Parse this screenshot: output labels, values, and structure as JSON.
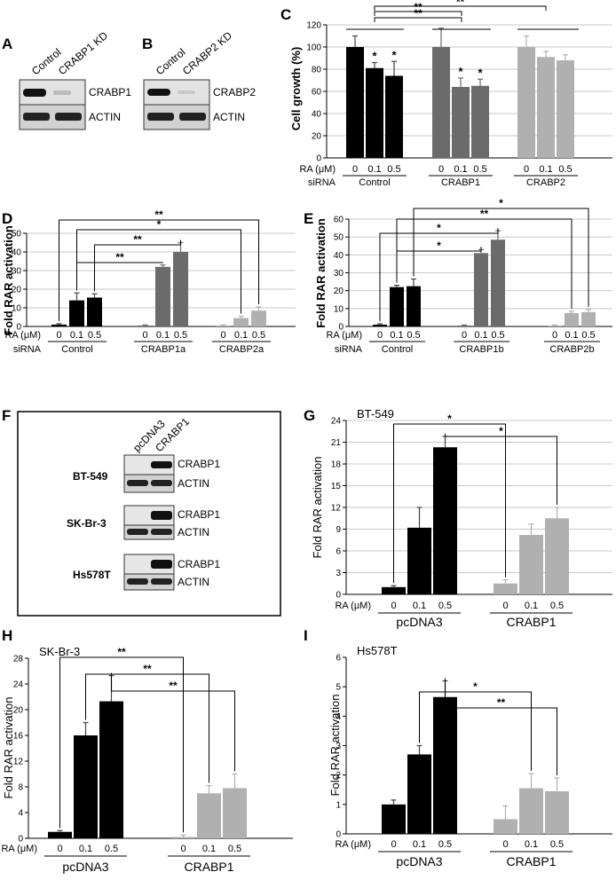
{
  "panel_letters": [
    "A",
    "B",
    "C",
    "D",
    "E",
    "F",
    "G",
    "H",
    "I"
  ],
  "blots": {
    "A": {
      "lanes": [
        "Control",
        "CRABP1 KD"
      ],
      "rows": [
        "CRABP1",
        "ACTIN"
      ]
    },
    "B": {
      "lanes": [
        "Control",
        "CRABP2 KD"
      ],
      "rows": [
        "CRABP2",
        "ACTIN"
      ]
    },
    "F": {
      "lanes": [
        "pcDNA3",
        "CRABP1"
      ],
      "cell_lines": [
        {
          "name": "BT-549",
          "rows": [
            "CRABP1",
            "ACTIN"
          ]
        },
        {
          "name": "SK-Br-3",
          "rows": [
            "CRABP1",
            "ACTIN"
          ]
        },
        {
          "name": "Hs578T",
          "rows": [
            "CRABP1",
            "ACTIN"
          ]
        }
      ]
    }
  },
  "colors": {
    "black": "#000000",
    "dark_gray": "#6b6b6b",
    "light_gray": "#b0b0b0",
    "grid": "#c8c8c8"
  },
  "chart_data": [
    {
      "id": "C",
      "type": "bar",
      "title": "",
      "ylabel": "Cell growth (%)",
      "ylim": [
        0,
        120
      ],
      "yticks": [
        0,
        20,
        40,
        60,
        80,
        100,
        120
      ],
      "row1_label": "RA (μM)",
      "row2_label": "siRNA",
      "doses": [
        "0",
        "0.1",
        "0.5"
      ],
      "groups": [
        {
          "name": "Control",
          "color": "black",
          "values": [
            100,
            81,
            74
          ],
          "errors": [
            10,
            5,
            13
          ],
          "marks": [
            "",
            "*",
            "*"
          ]
        },
        {
          "name": "CRABP1",
          "color": "dark_gray",
          "values": [
            100,
            64,
            65
          ],
          "errors": [
            17,
            8,
            6
          ],
          "marks": [
            "",
            "*",
            "*"
          ]
        },
        {
          "name": "CRABP2",
          "color": "light_gray",
          "values": [
            100,
            91,
            88
          ],
          "errors": [
            10,
            5,
            5
          ],
          "marks": [
            "",
            "",
            ""
          ]
        }
      ],
      "comparisons": [
        {
          "label": "**"
        },
        {
          "label": "**"
        },
        {
          "label": "**"
        }
      ]
    },
    {
      "id": "D",
      "type": "bar",
      "title": "",
      "ylabel": "Fold RAR activation",
      "ylim": [
        0,
        50
      ],
      "yticks": [
        0,
        10,
        20,
        30,
        40,
        50
      ],
      "row1_label": "RA (μM)",
      "row2_label": "siRNA",
      "doses": [
        "0",
        "0.1",
        "0.5"
      ],
      "groups": [
        {
          "name": "Control",
          "color": "black",
          "values": [
            1,
            14,
            15.5
          ],
          "errors": [
            0.5,
            4,
            2
          ],
          "marks": [
            "",
            "",
            ""
          ]
        },
        {
          "name": "CRABP1a",
          "color": "dark_gray",
          "values": [
            0.5,
            32,
            40
          ],
          "errors": [
            0.3,
            1,
            5
          ],
          "marks": [
            "",
            "",
            ""
          ]
        },
        {
          "name": "CRABP2a",
          "color": "light_gray",
          "values": [
            0.5,
            4.5,
            8.5
          ],
          "errors": [
            0.3,
            1,
            2
          ],
          "marks": [
            "",
            "",
            ""
          ]
        }
      ],
      "comparisons": [
        {
          "label": "**"
        },
        {
          "label": "**"
        },
        {
          "label": "*"
        },
        {
          "label": "**"
        }
      ]
    },
    {
      "id": "E",
      "type": "bar",
      "title": "",
      "ylabel": "Fold RAR activation",
      "ylim": [
        0,
        60
      ],
      "yticks": [
        0,
        10,
        20,
        30,
        40,
        50,
        60
      ],
      "row1_label": "RA (μM)",
      "row2_label": "siRNA",
      "doses": [
        "0",
        "0.1",
        "0.5"
      ],
      "groups": [
        {
          "name": "Control",
          "color": "black",
          "values": [
            1,
            22,
            22.5
          ],
          "errors": [
            0.5,
            1,
            4
          ],
          "marks": [
            "",
            "",
            ""
          ]
        },
        {
          "name": "CRABP1b",
          "color": "dark_gray",
          "values": [
            0.5,
            41,
            48.5
          ],
          "errors": [
            0.3,
            2,
            5
          ],
          "marks": [
            "",
            "",
            ""
          ]
        },
        {
          "name": "CRABP2b",
          "color": "light_gray",
          "values": [
            0.5,
            7.5,
            8
          ],
          "errors": [
            0.3,
            1,
            1.5
          ],
          "marks": [
            "",
            "",
            ""
          ]
        }
      ],
      "comparisons": [
        {
          "label": "*"
        },
        {
          "label": "*"
        },
        {
          "label": "**"
        },
        {
          "label": "*"
        }
      ]
    },
    {
      "id": "G",
      "type": "bar",
      "title": "BT-549",
      "ylabel": "Fold RAR activation",
      "ylim": [
        0,
        24
      ],
      "yticks": [
        0,
        3,
        6,
        9,
        12,
        15,
        18,
        21,
        24
      ],
      "row1_label": "RA (μM)",
      "row2_label": "",
      "doses": [
        "0",
        "0.1",
        "0.5"
      ],
      "groups": [
        {
          "name": "pcDNA3",
          "color": "black",
          "values": [
            1,
            9.2,
            20.3
          ],
          "errors": [
            0.2,
            2.8,
            1.5
          ],
          "marks": [
            "",
            "",
            ""
          ]
        },
        {
          "name": "CRABP1",
          "color": "light_gray",
          "values": [
            1.5,
            8.2,
            10.5
          ],
          "errors": [
            0.5,
            1.5,
            1.5
          ],
          "marks": [
            "",
            "",
            ""
          ]
        }
      ],
      "comparisons": [
        {
          "label": "*"
        },
        {
          "label": "*"
        }
      ]
    },
    {
      "id": "H",
      "type": "bar",
      "title": "SK-Br-3",
      "ylabel": "Fold RAR activation",
      "ylim": [
        0,
        28
      ],
      "yticks": [
        0,
        4,
        8,
        12,
        16,
        20,
        24,
        28
      ],
      "row1_label": "RA (μM)",
      "row2_label": "",
      "doses": [
        "0",
        "0.1",
        "0.5"
      ],
      "groups": [
        {
          "name": "pcDNA3",
          "color": "black",
          "values": [
            1,
            16,
            21.3
          ],
          "errors": [
            0.2,
            2,
            4
          ],
          "marks": [
            "",
            "",
            ""
          ]
        },
        {
          "name": "CRABP1",
          "color": "light_gray",
          "values": [
            0.2,
            7,
            7.8
          ],
          "errors": [
            0.3,
            1.2,
            2.2
          ],
          "marks": [
            "",
            "",
            ""
          ]
        }
      ],
      "comparisons": [
        {
          "label": "**"
        },
        {
          "label": "**"
        },
        {
          "label": "**"
        }
      ]
    },
    {
      "id": "I",
      "type": "bar",
      "title": "Hs578T",
      "ylabel": "Fold RAR activation",
      "ylim": [
        0,
        6
      ],
      "yticks": [
        0,
        1,
        2,
        3,
        4,
        5,
        6
      ],
      "row1_label": "RA (μM)",
      "row2_label": "",
      "doses": [
        "0",
        "0.1",
        "0.5"
      ],
      "groups": [
        {
          "name": "pcDNA3",
          "color": "black",
          "values": [
            1,
            2.7,
            4.65
          ],
          "errors": [
            0.15,
            0.3,
            0.55
          ],
          "marks": [
            "",
            "",
            ""
          ]
        },
        {
          "name": "CRABP1",
          "color": "light_gray",
          "values": [
            0.5,
            1.55,
            1.45
          ],
          "errors": [
            0.45,
            0.5,
            0.45
          ],
          "marks": [
            "",
            "",
            ""
          ]
        }
      ],
      "comparisons": [
        {
          "label": "*"
        },
        {
          "label": "**"
        }
      ]
    }
  ]
}
